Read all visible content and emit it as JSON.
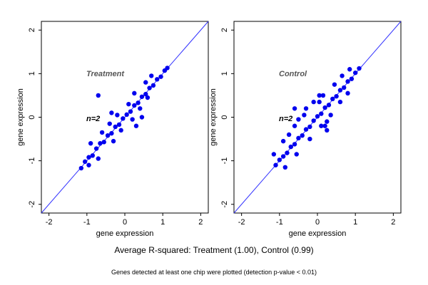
{
  "colors": {
    "points": "#0000ee",
    "diagonal": "#3333ff",
    "frame": "#000000"
  },
  "caption": "Average R-squared: Treatment (1.00), Control (0.99)",
  "footnote": "Genes detected at least one chip were plotted (detection p-value < 0.01)",
  "chart_data": [
    {
      "type": "scatter",
      "panel_label": "Treatment",
      "annotation": "n=2",
      "xlabel": "gene expression",
      "ylabel": "gene expression",
      "xlim": [
        -2.2,
        2.2
      ],
      "ylim": [
        -2.2,
        2.2
      ],
      "x_ticks": [
        -2,
        -1,
        0,
        1,
        2
      ],
      "y_ticks": [
        -2,
        -1,
        0,
        1,
        2
      ],
      "reference_line": "y = x",
      "grid": false,
      "series": [
        {
          "points": [
            [
              -1.15,
              -1.17
            ],
            [
              -1.05,
              -1.02
            ],
            [
              -0.95,
              -0.92
            ],
            [
              -0.85,
              -0.88
            ],
            [
              -0.75,
              -0.72
            ],
            [
              -0.65,
              -0.6
            ],
            [
              -0.55,
              -0.57
            ],
            [
              -0.45,
              -0.42
            ],
            [
              -0.35,
              -0.37
            ],
            [
              -0.25,
              -0.22
            ],
            [
              -0.15,
              -0.17
            ],
            [
              -0.05,
              -0.03
            ],
            [
              0.05,
              0.06
            ],
            [
              0.15,
              0.13
            ],
            [
              0.25,
              0.27
            ],
            [
              0.35,
              0.33
            ],
            [
              0.45,
              0.47
            ],
            [
              0.55,
              0.53
            ],
            [
              0.65,
              0.67
            ],
            [
              0.75,
              0.73
            ],
            [
              0.85,
              0.87
            ],
            [
              0.95,
              0.93
            ],
            [
              1.05,
              1.07
            ],
            [
              1.12,
              1.13
            ],
            [
              -0.9,
              -0.6
            ],
            [
              -0.6,
              -0.35
            ],
            [
              -0.4,
              -0.15
            ],
            [
              -0.2,
              0.05
            ],
            [
              0.1,
              0.3
            ],
            [
              -0.3,
              -0.55
            ],
            [
              -0.1,
              -0.3
            ],
            [
              0.2,
              -0.05
            ],
            [
              0.4,
              0.2
            ],
            [
              0.6,
              0.45
            ],
            [
              0.25,
              0.55
            ],
            [
              0.55,
              0.8
            ],
            [
              0.7,
              0.95
            ],
            [
              -0.7,
              -0.95
            ],
            [
              -0.95,
              -1.1
            ],
            [
              -0.7,
              0.5
            ],
            [
              0.45,
              0.0
            ],
            [
              -0.35,
              0.1
            ],
            [
              0.3,
              -0.2
            ]
          ]
        }
      ]
    },
    {
      "type": "scatter",
      "panel_label": "Control",
      "annotation": "n=2",
      "xlabel": "gene expression",
      "ylabel": "gene expression",
      "xlim": [
        -2.2,
        2.2
      ],
      "ylim": [
        -2.2,
        2.2
      ],
      "x_ticks": [
        -2,
        -1,
        0,
        1,
        2
      ],
      "y_ticks": [
        -2,
        -1,
        0,
        1,
        2
      ],
      "reference_line": "y = x",
      "grid": false,
      "series": [
        {
          "points": [
            [
              -1.1,
              -1.1
            ],
            [
              -1.0,
              -0.98
            ],
            [
              -0.9,
              -0.9
            ],
            [
              -0.8,
              -0.82
            ],
            [
              -0.7,
              -0.68
            ],
            [
              -0.6,
              -0.62
            ],
            [
              -0.5,
              -0.48
            ],
            [
              -0.4,
              -0.42
            ],
            [
              -0.3,
              -0.28
            ],
            [
              -0.2,
              -0.22
            ],
            [
              -0.1,
              -0.08
            ],
            [
              0.0,
              0.02
            ],
            [
              0.1,
              0.08
            ],
            [
              0.2,
              0.22
            ],
            [
              0.3,
              0.28
            ],
            [
              0.4,
              0.42
            ],
            [
              0.5,
              0.48
            ],
            [
              0.6,
              0.62
            ],
            [
              0.7,
              0.68
            ],
            [
              0.8,
              0.82
            ],
            [
              0.9,
              0.88
            ],
            [
              1.0,
              1.02
            ],
            [
              1.1,
              1.12
            ],
            [
              -1.15,
              -0.85
            ],
            [
              -0.9,
              -0.55
            ],
            [
              -0.6,
              -0.2
            ],
            [
              -0.35,
              0.05
            ],
            [
              -0.1,
              0.35
            ],
            [
              0.15,
              0.5
            ],
            [
              -0.85,
              -1.15
            ],
            [
              -0.55,
              -0.85
            ],
            [
              -0.2,
              -0.5
            ],
            [
              0.1,
              -0.2
            ],
            [
              0.35,
              0.05
            ],
            [
              0.6,
              0.35
            ],
            [
              0.45,
              0.75
            ],
            [
              0.65,
              0.95
            ],
            [
              0.85,
              1.1
            ],
            [
              -0.3,
              0.2
            ],
            [
              -0.5,
              -0.05
            ],
            [
              0.25,
              -0.1
            ],
            [
              0.05,
              0.35
            ],
            [
              -0.75,
              -0.4
            ],
            [
              0.8,
              0.55
            ],
            [
              0.25,
              -0.3
            ],
            [
              -0.6,
              0.2
            ],
            [
              0.05,
              0.5
            ],
            [
              0.2,
              -0.2
            ]
          ]
        }
      ]
    }
  ]
}
